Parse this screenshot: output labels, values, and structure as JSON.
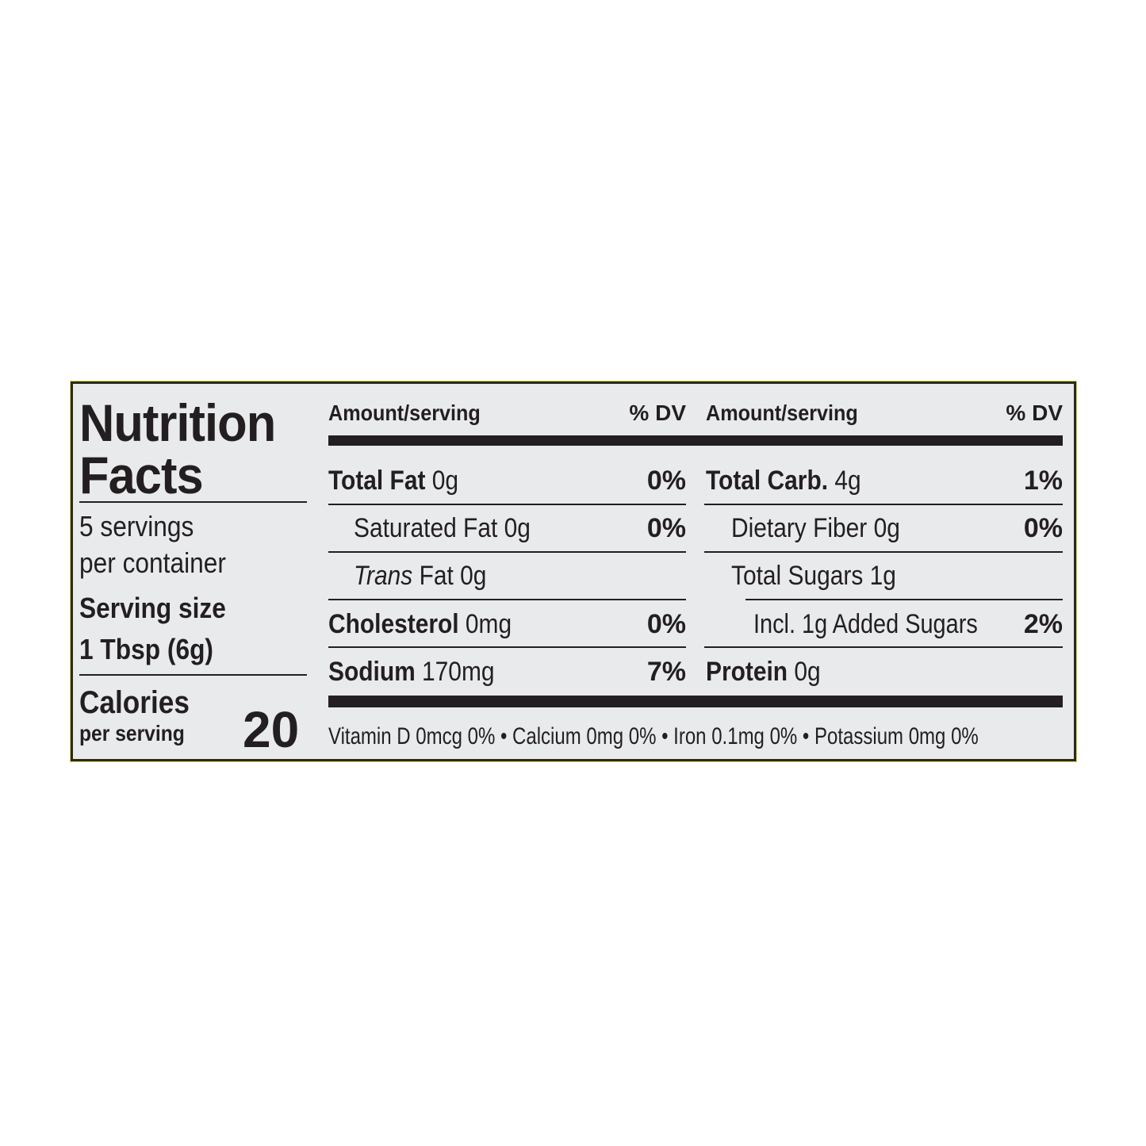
{
  "title_line1": "Nutrition",
  "title_line2": "Facts",
  "servings_line1": "5 servings",
  "servings_line2": "per container",
  "serving_size_label": "Serving size",
  "serving_size_value": "1 Tbsp (6g)",
  "calories_label": "Calories",
  "calories_sub": "per serving",
  "calories_value": "20",
  "header": {
    "amount": "Amount/serving",
    "dv": "% DV"
  },
  "left_rows": [
    {
      "name": "Total Fat",
      "amount": "0g",
      "dv": "0%"
    },
    {
      "name": "Saturated Fat",
      "amount": "0g",
      "dv": "0%"
    },
    {
      "name": "Trans",
      "amount": "Fat 0g",
      "dv": ""
    },
    {
      "name": "Cholesterol",
      "amount": "0mg",
      "dv": "0%"
    },
    {
      "name": "Sodium",
      "amount": "170mg",
      "dv": "7%"
    }
  ],
  "right_rows": [
    {
      "name": "Total Carb.",
      "amount": "4g",
      "dv": "1%"
    },
    {
      "name": "Dietary Fiber",
      "amount": "0g",
      "dv": "0%"
    },
    {
      "name": "Total Sugars",
      "amount": "1g",
      "dv": ""
    },
    {
      "name": "Incl. 1g Added Sugars",
      "amount": "",
      "dv": "2%"
    },
    {
      "name": "Protein",
      "amount": "0g",
      "dv": ""
    }
  ],
  "footer": "Vitamin D 0mcg 0% • Calcium 0mg 0% • Iron 0.1mg 0% • Potassium 0mg 0%"
}
